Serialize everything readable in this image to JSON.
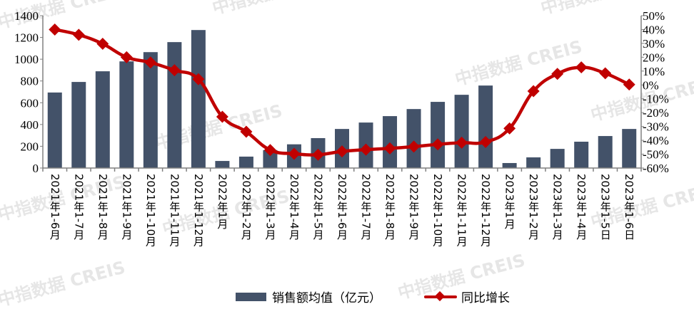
{
  "chart_data": {
    "type": "bar+line",
    "categories": [
      "2021年1-6月",
      "2021年1-7月",
      "2021年1-8月",
      "2021年1-9月",
      "2021年1-10月",
      "2021年1-11月",
      "2021年1-12月",
      "2022年1月",
      "2022年1-2月",
      "2022年1-3月",
      "2022年1-4月",
      "2022年1-5月",
      "2022年1-6月",
      "2022年1-7月",
      "2022年1-8月",
      "2022年1-9月",
      "2022年1-10月",
      "2022年1-11月",
      "2022年1-12月",
      "2023年1月",
      "2023年1-2月",
      "2023年1-3月",
      "2023年1-4月",
      "2023年1-5日",
      "2023年1-6日"
    ],
    "series": [
      {
        "name": "销售额均值（亿元）",
        "type": "bar",
        "axis": "left",
        "color": "#435269",
        "values": [
          694,
          791,
          889,
          980,
          1065,
          1157,
          1268,
          65,
          105,
          165,
          218,
          275,
          359,
          418,
          477,
          542,
          608,
          673,
          758,
          46,
          98,
          176,
          242,
          294,
          359
        ]
      },
      {
        "name": "同比增长",
        "type": "line",
        "axis": "right",
        "color": "#c00000",
        "values": [
          40,
          36.2,
          29.7,
          20,
          16.2,
          10.6,
          4.1,
          -23,
          -33.8,
          -47,
          -49.7,
          -50.4,
          -48,
          -46.7,
          -45.8,
          -44.5,
          -42.9,
          -41.7,
          -41.2,
          -31.4,
          -4.5,
          8,
          12.7,
          8.4,
          0.3
        ]
      }
    ],
    "y_left": {
      "range": [
        0,
        1400
      ],
      "ticks": [
        0,
        200,
        400,
        600,
        800,
        1000,
        1200,
        1400
      ]
    },
    "y_right": {
      "range": [
        -60,
        50
      ],
      "unit": "%",
      "ticks": [
        -60,
        -50,
        -40,
        -30,
        -20,
        -10,
        0,
        10,
        20,
        30,
        40,
        50
      ]
    },
    "grid": false,
    "legend_position": "bottom"
  },
  "watermark": "中指数据 CREIS"
}
